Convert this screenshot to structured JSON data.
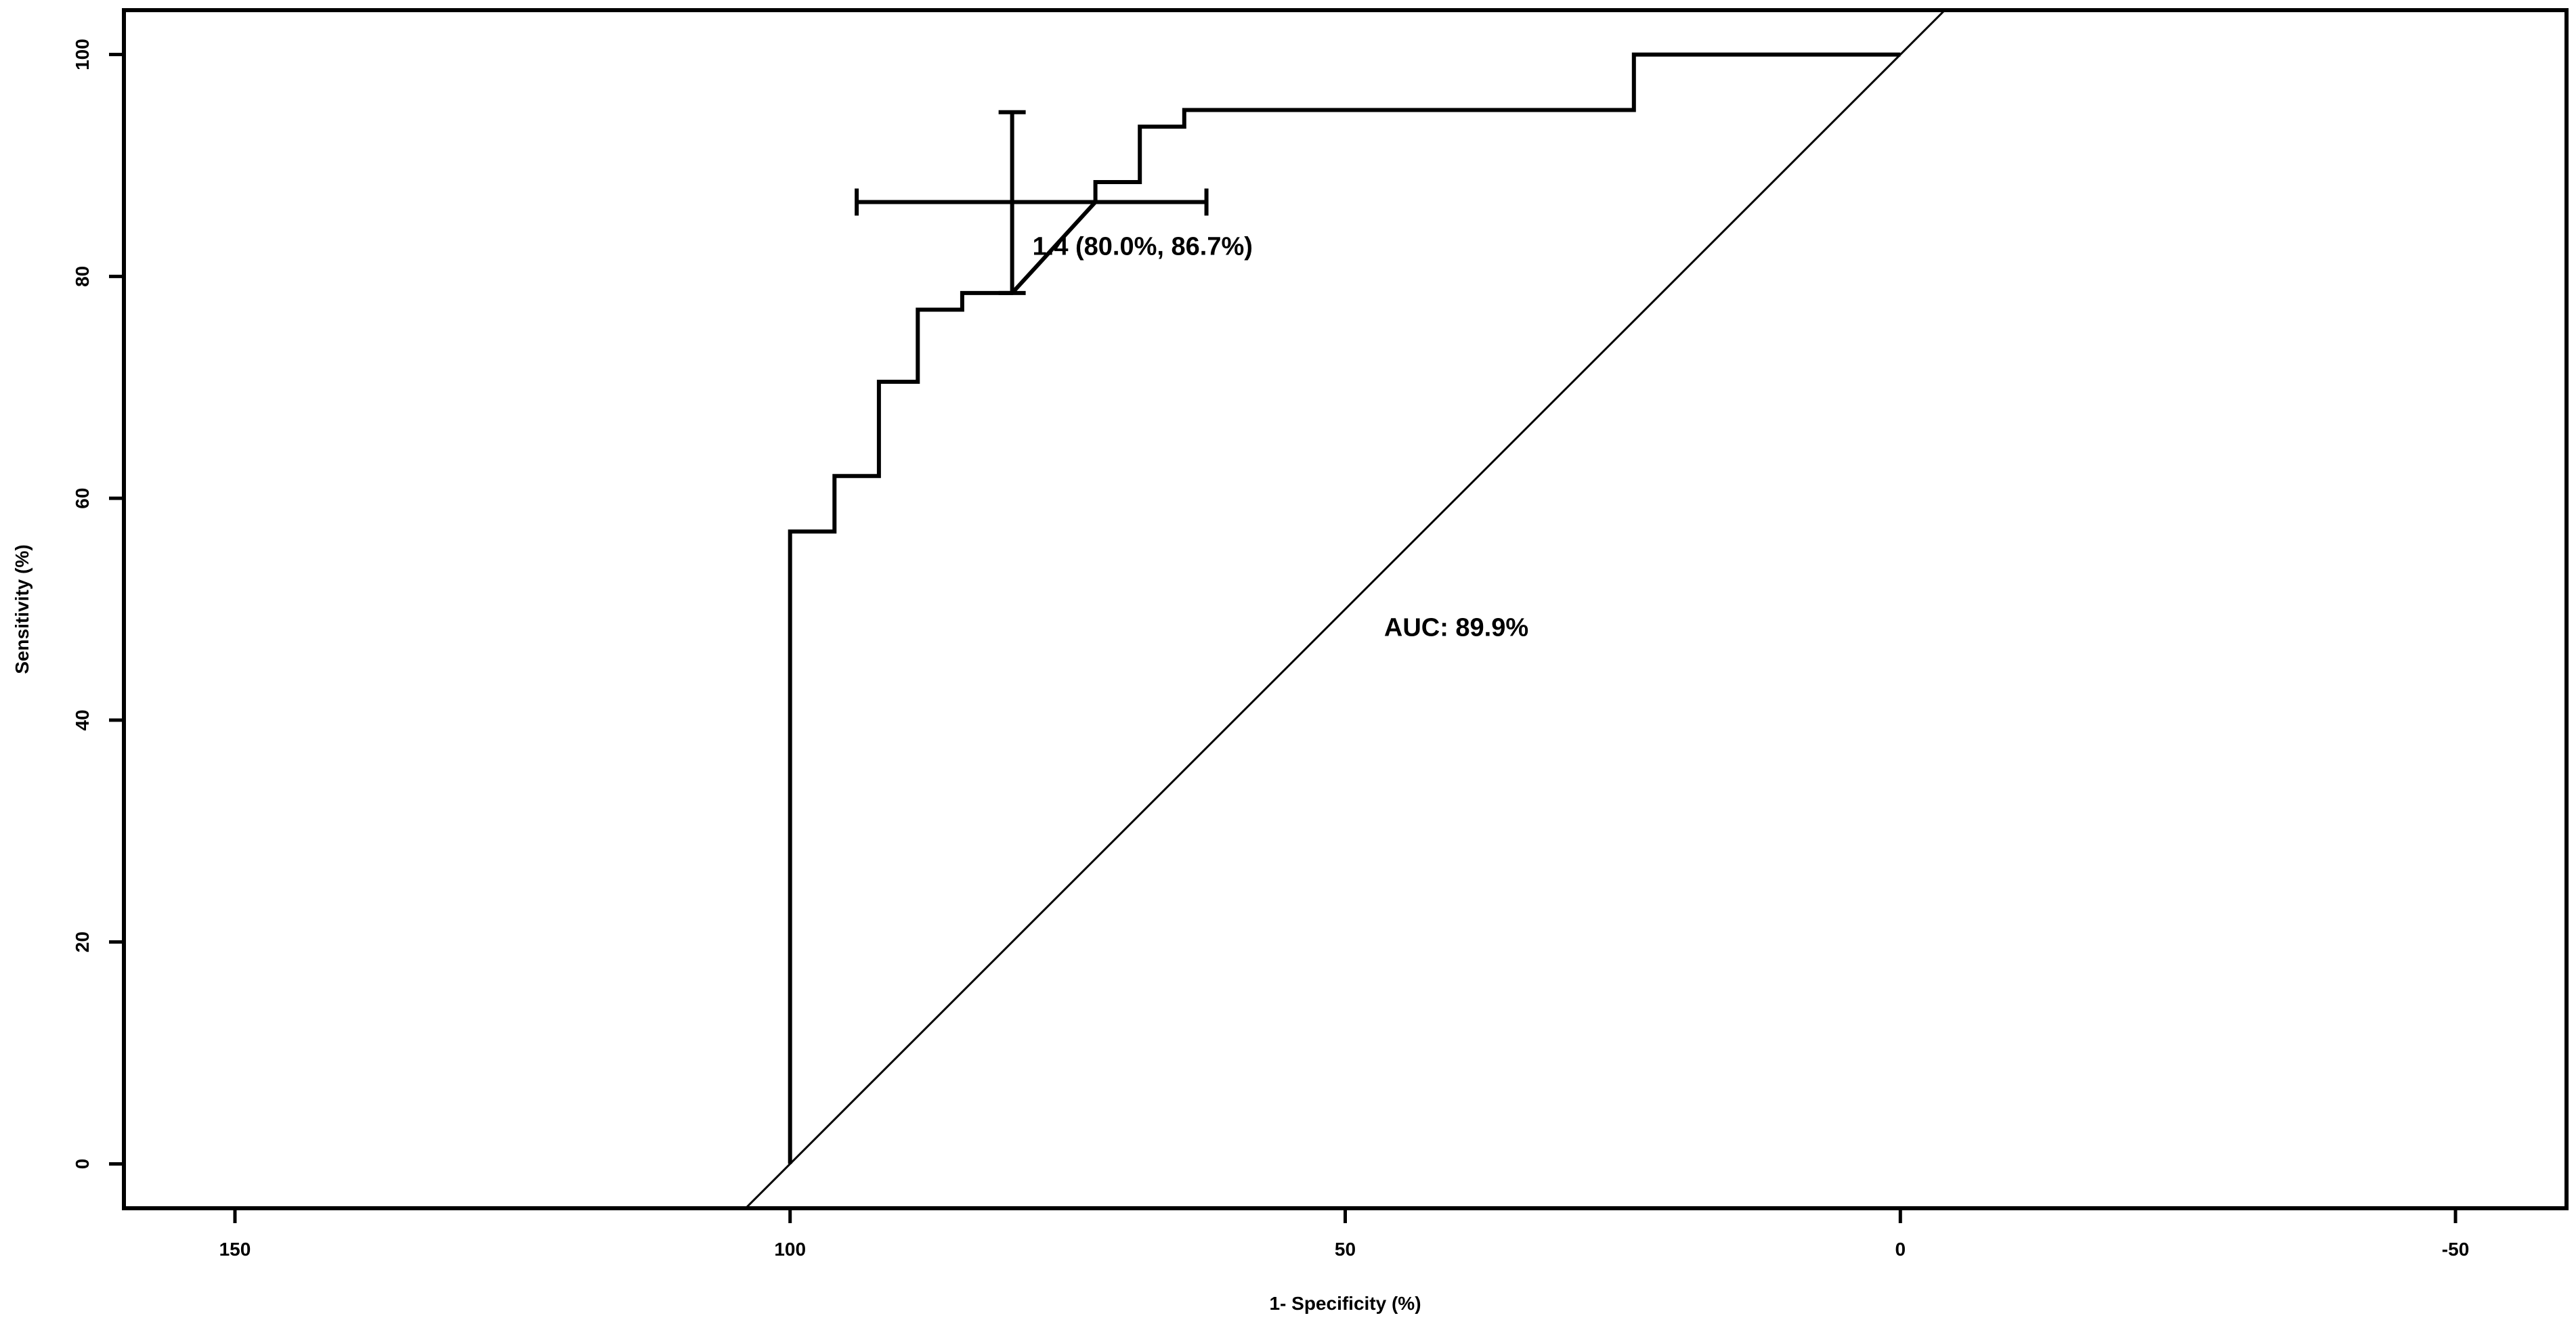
{
  "chart_data": {
    "type": "line",
    "title": "",
    "xlabel": "1- Specificity (%)",
    "ylabel": "Sensitivity (%)",
    "x_reversed": true,
    "xlim": [
      160,
      -60
    ],
    "ylim": [
      -4,
      104
    ],
    "xticks": [
      150,
      100,
      50,
      0,
      -50
    ],
    "yticks": [
      0,
      20,
      40,
      60,
      80,
      100
    ],
    "grid": false,
    "legend": "none",
    "series": [
      {
        "kind": "roc-step",
        "x": [
          100,
          100,
          96,
          96,
          92,
          92,
          88.5,
          88.5,
          84.5,
          84.5,
          80,
          72.5,
          72.5,
          68.5,
          68.5,
          64.5,
          64.5,
          24,
          24,
          0
        ],
        "y": [
          0,
          57,
          57,
          62,
          62,
          70.5,
          70.5,
          77,
          77,
          78.5,
          78.5,
          86.7,
          88.5,
          88.5,
          93.5,
          93.5,
          95,
          95,
          100,
          100
        ]
      },
      {
        "kind": "diagonal",
        "x": [
          104,
          -4
        ],
        "y": [
          -4,
          104
        ]
      }
    ],
    "threshold_point": {
      "x": 80,
      "y": 86.7,
      "x_ci": [
        94,
        62.5
      ],
      "y_ci": [
        78.5,
        94.8
      ],
      "label": "1.4 (80.0%, 86.7%)"
    },
    "annotations": [
      {
        "text": "AUC: 89.9%",
        "x": 46.5,
        "y": 47.6
      }
    ]
  }
}
